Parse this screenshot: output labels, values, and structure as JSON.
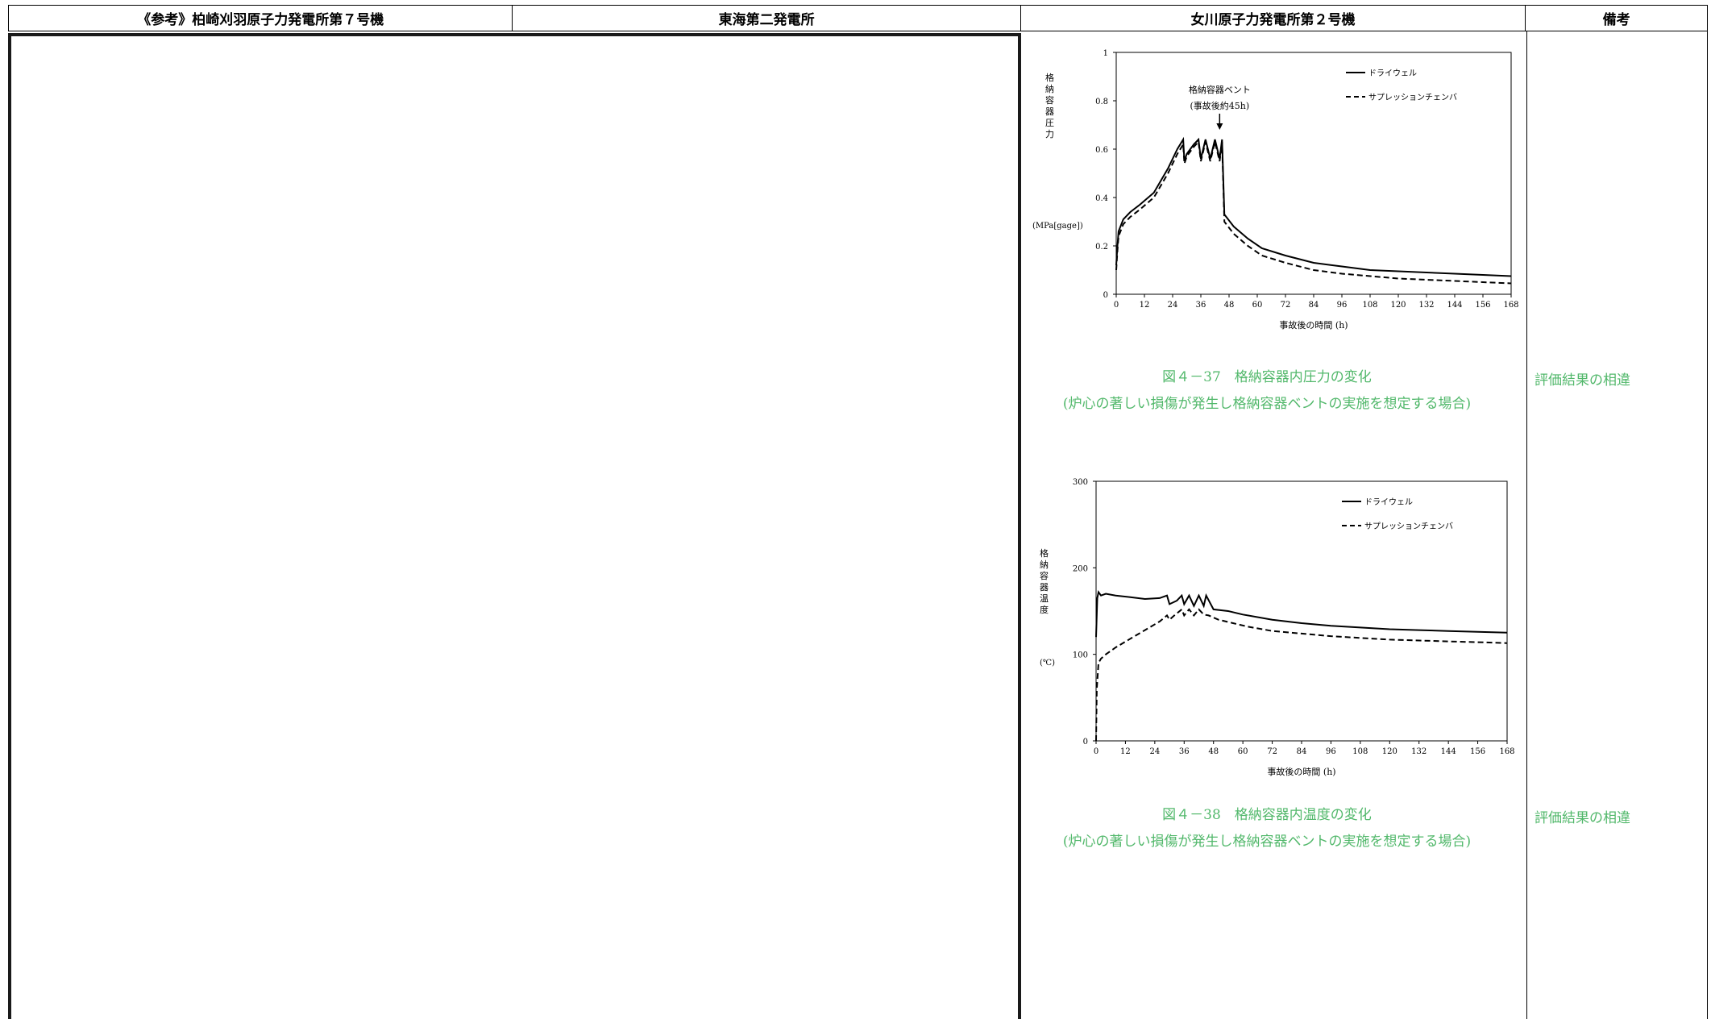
{
  "header": {
    "col1": "《参考》柏崎刈羽原子力発電所第７号機",
    "col2": "東海第二発電所",
    "col3": "女川原子力発電所第２号機",
    "col4": "備考"
  },
  "figures": [
    {
      "caption_line1": "図４－37　格納容器内圧力の変化",
      "caption_line2": "(炉心の著しい損傷が発生し格納容器ベントの実施を想定する場合)",
      "remark": "評価結果の相違"
    },
    {
      "caption_line1": "図４－38　格納容器内温度の変化",
      "caption_line2": "(炉心の著しい損傷が発生し格納容器ベントの実施を想定する場合)",
      "remark": "評価結果の相違"
    }
  ],
  "chart_data": [
    {
      "type": "line",
      "ylabel": "格納容器圧力",
      "yunit": "(MPa[gage])",
      "xlabel": "事故後の時間 (h)",
      "xlim": [
        0,
        168
      ],
      "ylim": [
        0,
        1
      ],
      "xticks": [
        "0",
        "12",
        "24",
        "36",
        "48",
        "60",
        "72",
        "84",
        "96",
        "108",
        "120",
        "132",
        "144",
        "156",
        "168"
      ],
      "yticks": [
        "0",
        "0.2",
        "0.4",
        "0.6",
        "0.8",
        "1"
      ],
      "annotation": [
        "格納容器ベント",
        "(事故後約45h)"
      ],
      "legend": [
        "ドライウェル",
        "サプレッションチェンバ"
      ],
      "legend_position": "top-right",
      "series": [
        {
          "name": "ドライウェル",
          "style": "solid",
          "x": [
            0,
            0.5,
            1,
            3,
            6,
            10,
            16,
            22,
            26,
            28.5,
            29,
            30,
            33,
            35,
            36,
            38,
            40,
            42,
            44,
            45,
            46,
            50,
            56,
            62,
            72,
            84,
            96,
            108,
            120,
            132,
            144,
            156,
            168
          ],
          "y": [
            0.12,
            0.2,
            0.26,
            0.31,
            0.34,
            0.37,
            0.42,
            0.52,
            0.6,
            0.64,
            0.55,
            0.58,
            0.62,
            0.64,
            0.56,
            0.64,
            0.56,
            0.64,
            0.56,
            0.64,
            0.33,
            0.28,
            0.23,
            0.19,
            0.16,
            0.13,
            0.115,
            0.1,
            0.095,
            0.09,
            0.085,
            0.08,
            0.075
          ]
        },
        {
          "name": "サプレッションチェンバ",
          "style": "dashed",
          "x": [
            0,
            0.5,
            1,
            3,
            6,
            10,
            16,
            22,
            26,
            28.5,
            29,
            30,
            33,
            35,
            36,
            38,
            40,
            42,
            44,
            45,
            46,
            50,
            56,
            62,
            72,
            84,
            96,
            108,
            120,
            132,
            144,
            156,
            168
          ],
          "y": [
            0.1,
            0.18,
            0.24,
            0.29,
            0.32,
            0.35,
            0.4,
            0.5,
            0.58,
            0.62,
            0.54,
            0.57,
            0.61,
            0.63,
            0.55,
            0.63,
            0.55,
            0.63,
            0.55,
            0.63,
            0.3,
            0.25,
            0.2,
            0.16,
            0.13,
            0.1,
            0.085,
            0.075,
            0.065,
            0.06,
            0.055,
            0.05,
            0.045
          ]
        }
      ]
    },
    {
      "type": "line",
      "ylabel": "格納容器温度",
      "yunit": "(℃)",
      "xlabel": "事故後の時間 (h)",
      "xlim": [
        0,
        168
      ],
      "ylim": [
        0,
        300
      ],
      "xticks": [
        "0",
        "12",
        "24",
        "36",
        "48",
        "60",
        "72",
        "84",
        "96",
        "108",
        "120",
        "132",
        "144",
        "156",
        "168"
      ],
      "yticks": [
        "0",
        "100",
        "200",
        "300"
      ],
      "legend": [
        "ドライウェル",
        "サプレッションチェンバ"
      ],
      "legend_position": "top-right",
      "series": [
        {
          "name": "ドライウェル",
          "style": "solid",
          "x": [
            0,
            0.5,
            1,
            2,
            4,
            8,
            14,
            20,
            26,
            29,
            30,
            33,
            35,
            36,
            38,
            40,
            42,
            44,
            45,
            48,
            54,
            60,
            72,
            84,
            96,
            108,
            120,
            132,
            144,
            156,
            168
          ],
          "y": [
            120,
            165,
            172,
            168,
            170,
            168,
            166,
            164,
            165,
            168,
            158,
            162,
            168,
            158,
            168,
            156,
            168,
            156,
            168,
            152,
            150,
            146,
            140,
            136,
            133,
            131,
            129,
            128,
            127,
            126,
            125
          ],
          "alt_spike": [
            0.8,
            150
          ]
        },
        {
          "name": "サプレッションチェンバ",
          "style": "dashed",
          "x": [
            0,
            0.3,
            1,
            2,
            4,
            8,
            14,
            20,
            26,
            29,
            30,
            32,
            35,
            36,
            38,
            40,
            42,
            44,
            46,
            50,
            56,
            62,
            72,
            84,
            96,
            108,
            120,
            132,
            144,
            156,
            168
          ],
          "y": [
            0,
            60,
            90,
            95,
            100,
            108,
            118,
            128,
            138,
            145,
            140,
            145,
            152,
            145,
            152,
            145,
            152,
            146,
            145,
            140,
            136,
            132,
            127,
            124,
            121,
            119,
            117,
            116,
            115,
            114,
            113
          ]
        }
      ]
    }
  ]
}
